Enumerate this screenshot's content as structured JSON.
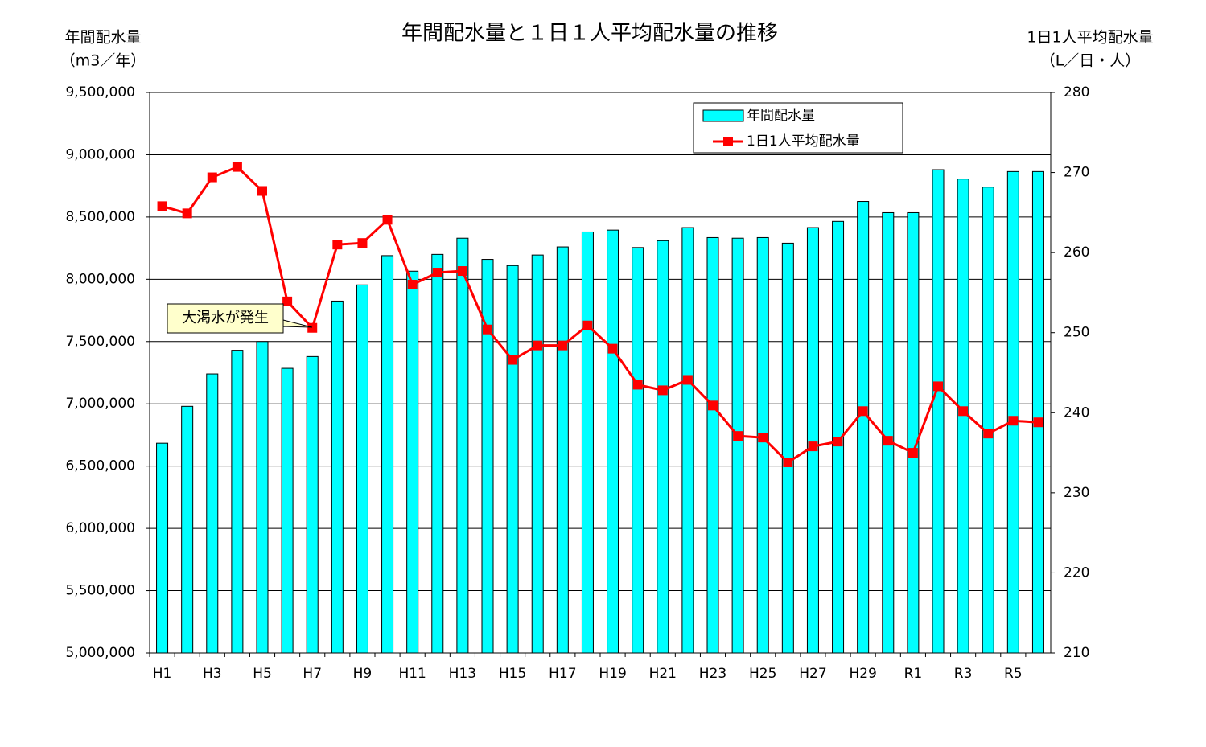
{
  "chart_data": {
    "type": "bar-line",
    "title": "年間配水量と１日１人平均配水量の推移",
    "ylabel": [
      "年間配水量",
      "（m3／年）"
    ],
    "y2label": [
      "1日1人平均配水量",
      "（L／日・人）"
    ],
    "categories": [
      "H1",
      null,
      "H3",
      null,
      "H5",
      null,
      "H7",
      null,
      "H9",
      null,
      "H11",
      null,
      "H13",
      null,
      "H15",
      null,
      "H17",
      null,
      "H19",
      null,
      "H21",
      null,
      "H23",
      null,
      "H25",
      null,
      "H27",
      null,
      "H29",
      null,
      "R1",
      null,
      "R3",
      null,
      "R5",
      null
    ],
    "series": [
      {
        "name": "年間配水量",
        "type": "bar",
        "color": "#00ffff",
        "values": [
          6684000,
          6980000,
          7240000,
          7430000,
          7500000,
          7285000,
          7380000,
          7825000,
          7955000,
          8190000,
          8065000,
          8200000,
          8330000,
          8160000,
          8110000,
          8195000,
          8260000,
          8380000,
          8395000,
          8255000,
          8310000,
          8415000,
          8335000,
          8330000,
          8335000,
          8290000,
          8415000,
          8465000,
          8625000,
          8535000,
          8535000,
          8880000,
          8805000,
          8740000,
          8865000,
          8865000
        ]
      },
      {
        "name": "1日1人平均配水量",
        "type": "line",
        "axis": "y2",
        "color": "#ff0000",
        "values": [
          265.8,
          264.9,
          269.4,
          270.7,
          267.7,
          253.9,
          250.6,
          261.0,
          261.2,
          264.1,
          256.0,
          257.5,
          257.7,
          250.4,
          246.6,
          248.4,
          248.4,
          250.9,
          248.0,
          243.5,
          242.8,
          244.1,
          240.9,
          237.1,
          236.9,
          233.8,
          235.8,
          236.4,
          240.2,
          236.5,
          235.0,
          243.3,
          240.2,
          237.4,
          239.0,
          238.8
        ]
      }
    ],
    "ylim": [
      5000000,
      9500000
    ],
    "yticks": [
      {
        "value": 5000000,
        "label": "5,000,000"
      },
      {
        "value": 5500000,
        "label": "5,500,000"
      },
      {
        "value": 6000000,
        "label": "6,000,000"
      },
      {
        "value": 6500000,
        "label": "6,500,000"
      },
      {
        "value": 7000000,
        "label": "7,000,000"
      },
      {
        "value": 7500000,
        "label": "7,500,000"
      },
      {
        "value": 8000000,
        "label": "8,000,000"
      },
      {
        "value": 8500000,
        "label": "8,500,000"
      },
      {
        "value": 9000000,
        "label": "9,000,000"
      },
      {
        "value": 9500000,
        "label": "9,500,000"
      }
    ],
    "y2lim": [
      210,
      280
    ],
    "y2ticks": [
      210,
      220,
      230,
      240,
      250,
      260,
      270,
      280
    ],
    "grid": true,
    "legend": "upper right",
    "annotations": [
      {
        "text": "大渇水が発生"
      }
    ]
  }
}
